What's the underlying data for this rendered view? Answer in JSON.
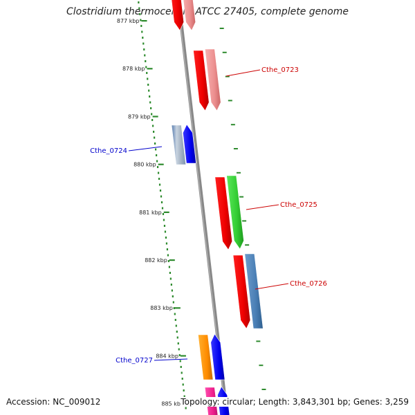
{
  "title": "Clostridium thermocellum ATCC 27405, complete genome",
  "footer": {
    "accession": "Accession: NC_009012",
    "summary": "Topology: circular; Length: 3,843,301 bp; Genes: 3,259"
  },
  "colors": {
    "backbone": "#888888",
    "tick": "#2e8b2e",
    "forward_label": "#cc0000",
    "reverse_label": "#0000cc"
  },
  "ticks": [
    "877 kbp",
    "878 kbp",
    "879 kbp",
    "880 kbp",
    "881 kbp",
    "882 kbp",
    "883 kbp",
    "884 kbp",
    "885 kbp"
  ],
  "labels": [
    {
      "text": "Cthe_0723",
      "strand": "forward"
    },
    {
      "text": "Cthe_0724",
      "strand": "reverse"
    },
    {
      "text": "Cthe_0725",
      "strand": "forward"
    },
    {
      "text": "Cthe_0726",
      "strand": "forward"
    },
    {
      "text": "Cthe_0727",
      "strand": "reverse"
    }
  ]
}
